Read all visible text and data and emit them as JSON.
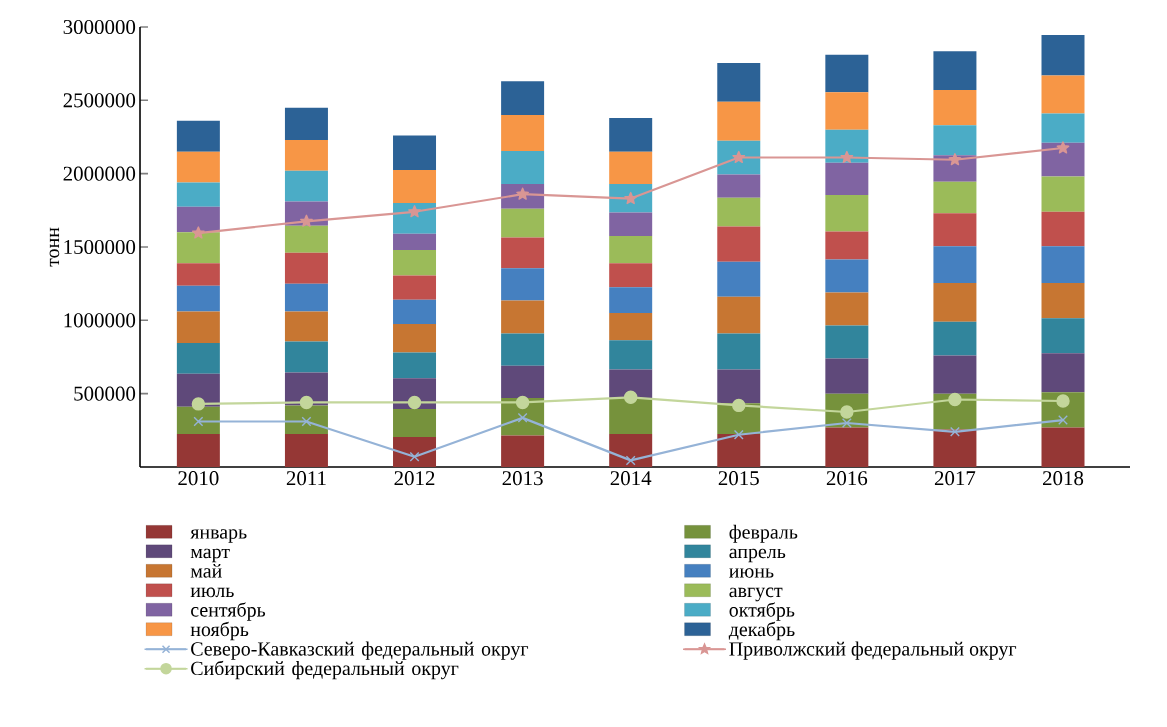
{
  "chart_data": {
    "type": "bar",
    "stacked": true,
    "ylabel": "тонн",
    "legend": "bottom",
    "grid": false,
    "categories": [
      "2010",
      "2011",
      "2012",
      "2013",
      "2014",
      "2015",
      "2016",
      "2017",
      "2018"
    ],
    "ylim": [
      0,
      3000000
    ],
    "yticks": [
      500000,
      1000000,
      1500000,
      2000000,
      2500000,
      3000000
    ],
    "series": [
      {
        "name": "январь",
        "color": "#953735",
        "values": [
          225000,
          225000,
          205000,
          215000,
          225000,
          225000,
          270000,
          255000,
          270000
        ]
      },
      {
        "name": "февраль",
        "color": "#76923c",
        "values": [
          185000,
          195000,
          190000,
          255000,
          245000,
          210000,
          230000,
          245000,
          240000
        ]
      },
      {
        "name": "март",
        "color": "#5f497a",
        "values": [
          225000,
          225000,
          210000,
          220000,
          195000,
          230000,
          240000,
          260000,
          265000
        ]
      },
      {
        "name": "апрель",
        "color": "#31859c",
        "values": [
          210000,
          210000,
          175000,
          220000,
          200000,
          245000,
          225000,
          230000,
          240000
        ]
      },
      {
        "name": "май",
        "color": "#c77632",
        "values": [
          215000,
          205000,
          195000,
          225000,
          185000,
          250000,
          225000,
          265000,
          240000
        ]
      },
      {
        "name": "июнь",
        "color": "#4580c0",
        "values": [
          175000,
          190000,
          165000,
          220000,
          175000,
          240000,
          225000,
          250000,
          250000
        ]
      },
      {
        "name": "июль",
        "color": "#c0504d",
        "values": [
          155000,
          210000,
          165000,
          210000,
          165000,
          240000,
          190000,
          225000,
          235000
        ]
      },
      {
        "name": "август",
        "color": "#9bbb59",
        "values": [
          210000,
          185000,
          175000,
          195000,
          185000,
          195000,
          250000,
          215000,
          240000
        ]
      },
      {
        "name": "сентябрь",
        "color": "#8064a2",
        "values": [
          175000,
          165000,
          110000,
          170000,
          160000,
          160000,
          220000,
          180000,
          230000
        ]
      },
      {
        "name": "октябрь",
        "color": "#4bacc6",
        "values": [
          165000,
          210000,
          210000,
          225000,
          195000,
          230000,
          225000,
          205000,
          200000
        ]
      },
      {
        "name": "ноябрь",
        "color": "#f79646",
        "values": [
          210000,
          210000,
          225000,
          245000,
          220000,
          265000,
          255000,
          240000,
          260000
        ]
      },
      {
        "name": "декабрь",
        "color": "#2c6296",
        "values": [
          210000,
          220000,
          235000,
          230000,
          230000,
          265000,
          255000,
          265000,
          275000
        ]
      },
      {
        "name": "Северо-Кавказский федеральный округ",
        "type": "line",
        "marker": "cross",
        "color": "#95b3d7",
        "values": [
          310000,
          310000,
          70000,
          335000,
          45000,
          220000,
          300000,
          240000,
          320000
        ]
      },
      {
        "name": "Приволжский федеральный округ",
        "type": "line",
        "marker": "star",
        "color": "#d99694",
        "values": [
          1595000,
          1675000,
          1740000,
          1860000,
          1830000,
          2110000,
          2110000,
          2095000,
          2175000
        ]
      },
      {
        "name": "Сибирский федеральный округ",
        "type": "line",
        "marker": "circle",
        "color": "#c3d69b",
        "values": [
          430000,
          440000,
          440000,
          440000,
          475000,
          420000,
          375000,
          460000,
          450000
        ]
      }
    ]
  }
}
